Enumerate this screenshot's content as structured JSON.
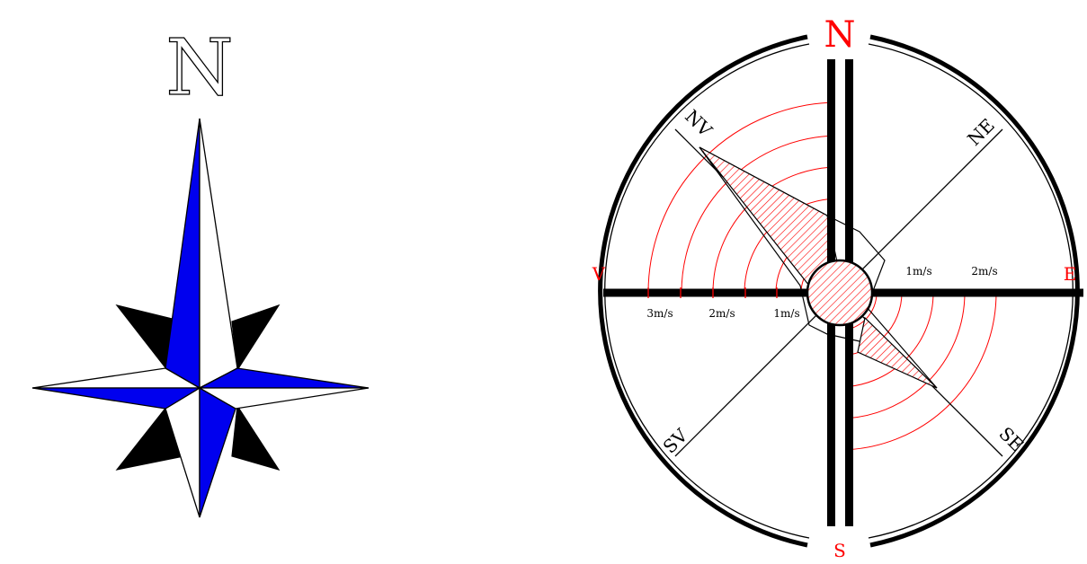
{
  "left_compass": {
    "north_label": "N",
    "colors": {
      "blue": "#0000ee",
      "black": "#000000",
      "white": "#ffffff"
    }
  },
  "right_compass": {
    "directions": {
      "north": "N",
      "south": "S",
      "east": "E",
      "west": "V",
      "northeast": "NE",
      "northwest": "NV",
      "southeast": "SE",
      "southwest": "SV"
    },
    "scale_labels_west": [
      "3m/s",
      "2m/s",
      "1m/s"
    ],
    "scale_labels_east": [
      "1m/s",
      "2m/s"
    ],
    "colors": {
      "accent": "#ff0000",
      "line": "#000000"
    }
  }
}
